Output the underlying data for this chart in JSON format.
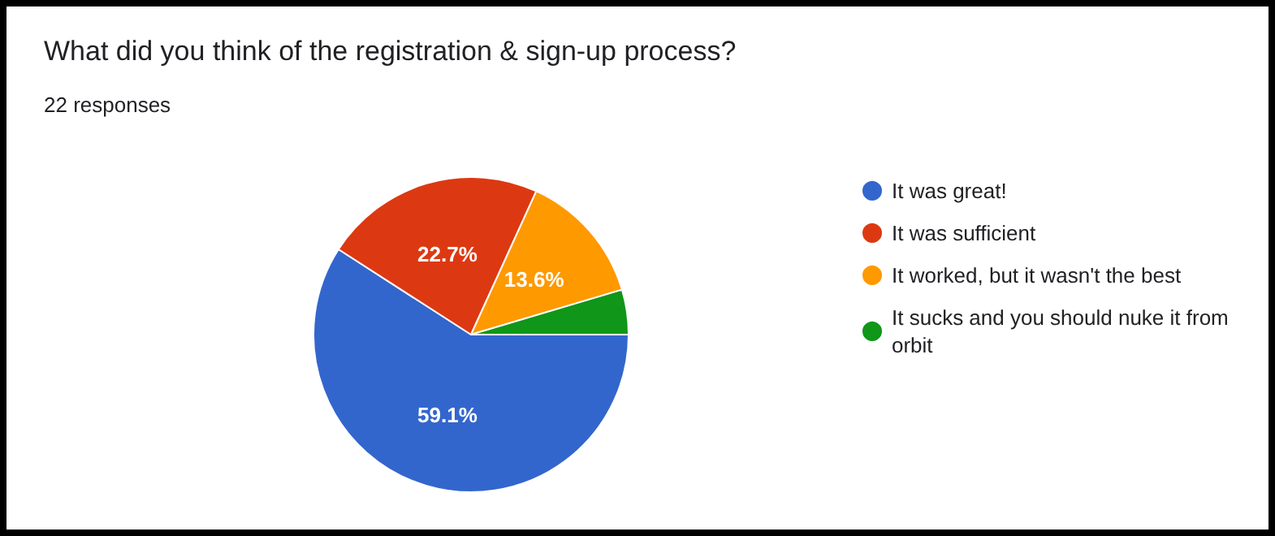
{
  "chart_data": {
    "type": "pie",
    "title": "What did you think of the registration & sign-up process?",
    "subtitle": "22 responses",
    "categories": [
      "It was great!",
      "It was sufficient",
      "It worked, but it wasn't the best",
      "It sucks and you should nuke it from orbit"
    ],
    "values": [
      59.1,
      22.7,
      13.6,
      4.6
    ],
    "colors": [
      "#3366cc",
      "#dc3912",
      "#ff9900",
      "#109618"
    ],
    "value_labels": [
      "59.1%",
      "22.7%",
      "13.6%",
      null
    ],
    "legend": "right"
  }
}
